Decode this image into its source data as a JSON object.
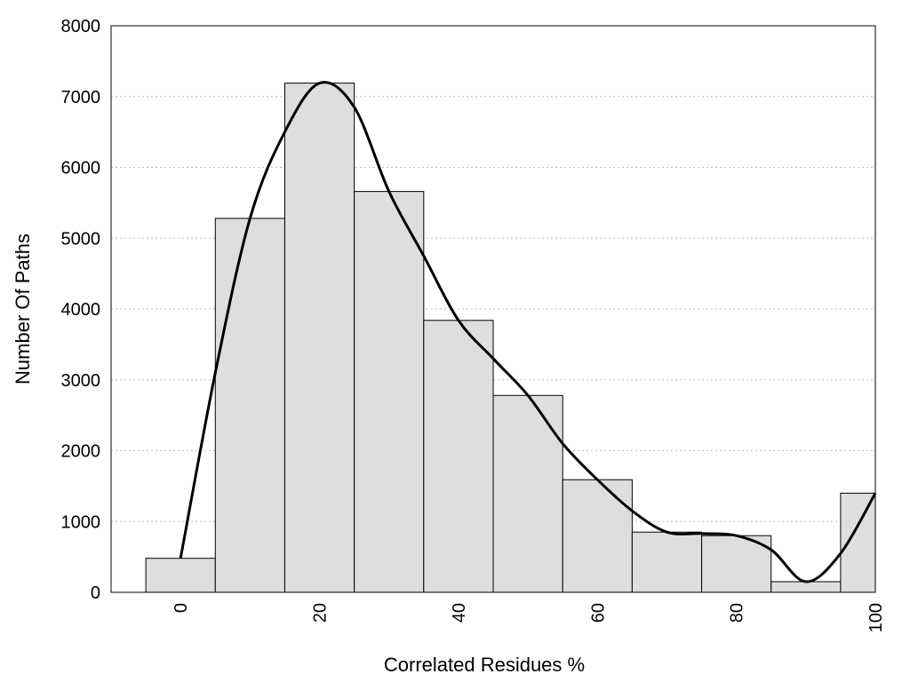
{
  "chart_data": {
    "type": "bar",
    "title": "",
    "xlabel": "Correlated Residues %",
    "ylabel": "Number Of Paths",
    "xlim": [
      -10,
      100
    ],
    "ylim": [
      0,
      8000
    ],
    "x_ticks": [
      0,
      20,
      40,
      60,
      80,
      100
    ],
    "y_ticks": [
      0,
      1000,
      2000,
      3000,
      4000,
      5000,
      6000,
      7000,
      8000
    ],
    "grid": "horizontal dotted",
    "bin_width": 10,
    "bins": [
      0,
      10,
      20,
      30,
      40,
      50,
      60,
      70,
      80,
      90,
      100
    ],
    "values": [
      480,
      5280,
      7190,
      5660,
      3840,
      2780,
      1590,
      850,
      800,
      150,
      1400
    ],
    "smooth_curve": [
      {
        "x": 0,
        "y": 480
      },
      {
        "x": 5,
        "y": 3100
      },
      {
        "x": 10,
        "y": 5280
      },
      {
        "x": 15,
        "y": 6500
      },
      {
        "x": 20,
        "y": 7190
      },
      {
        "x": 25,
        "y": 6850
      },
      {
        "x": 30,
        "y": 5660
      },
      {
        "x": 35,
        "y": 4750
      },
      {
        "x": 40,
        "y": 3840
      },
      {
        "x": 45,
        "y": 3300
      },
      {
        "x": 50,
        "y": 2780
      },
      {
        "x": 55,
        "y": 2100
      },
      {
        "x": 60,
        "y": 1590
      },
      {
        "x": 65,
        "y": 1150
      },
      {
        "x": 70,
        "y": 850
      },
      {
        "x": 75,
        "y": 830
      },
      {
        "x": 80,
        "y": 800
      },
      {
        "x": 85,
        "y": 600
      },
      {
        "x": 90,
        "y": 150
      },
      {
        "x": 95,
        "y": 550
      },
      {
        "x": 100,
        "y": 1400
      }
    ],
    "colors": {
      "bar_fill": "#dedede",
      "bar_stroke": "#000000",
      "curve": "#000000",
      "grid": "#bfbfbf"
    }
  }
}
